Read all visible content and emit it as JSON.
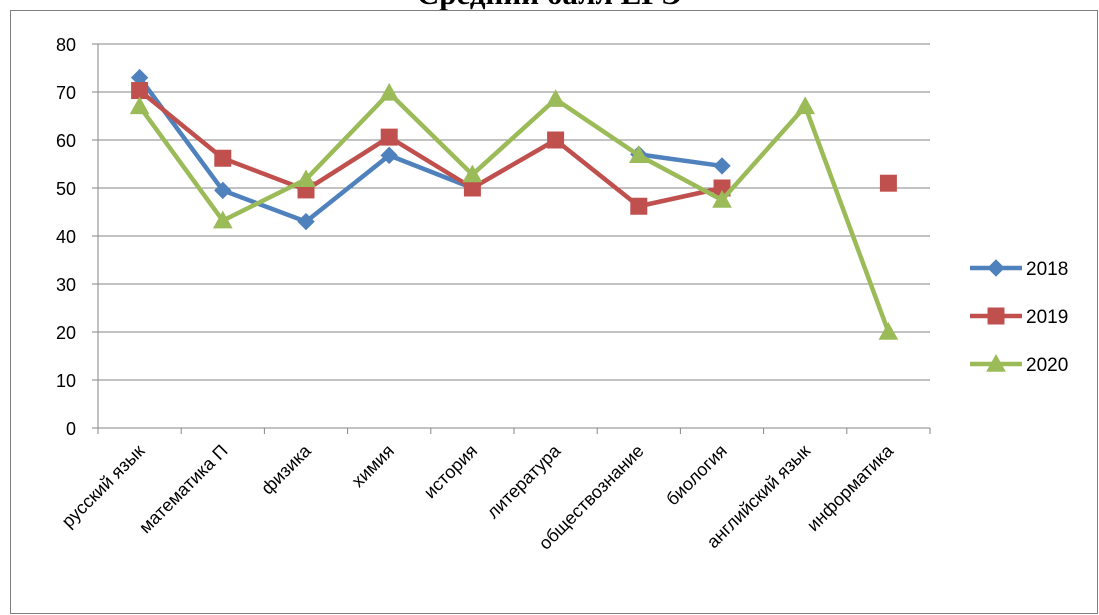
{
  "chart_data": {
    "type": "line",
    "title": "Средний балл ЕГЭ",
    "xlabel": "",
    "ylabel": "",
    "ylim": [
      0,
      80
    ],
    "yticks": [
      0,
      10,
      20,
      30,
      40,
      50,
      60,
      70,
      80
    ],
    "grid": true,
    "legend": "right",
    "categories": [
      "русский язык",
      "математика П",
      "физика",
      "химия",
      "история",
      "литература",
      "обществознание",
      "биология",
      "английский язык",
      "информатика"
    ],
    "series": [
      {
        "name": "2018",
        "color": "#4f81bd",
        "marker": "diamond",
        "values": [
          73,
          49.5,
          43,
          56.8,
          50,
          null,
          57,
          54.6,
          null,
          null
        ]
      },
      {
        "name": "2019",
        "color": "#c0504d",
        "marker": "square",
        "values": [
          70.3,
          56.2,
          49.6,
          60.6,
          50,
          60,
          46.2,
          50,
          null,
          51
        ]
      },
      {
        "name": "2020",
        "color": "#9bbb59",
        "marker": "triangle",
        "values": [
          67,
          43.2,
          51.8,
          69.8,
          52.8,
          68.5,
          56.8,
          47.5,
          67,
          20
        ]
      }
    ]
  }
}
